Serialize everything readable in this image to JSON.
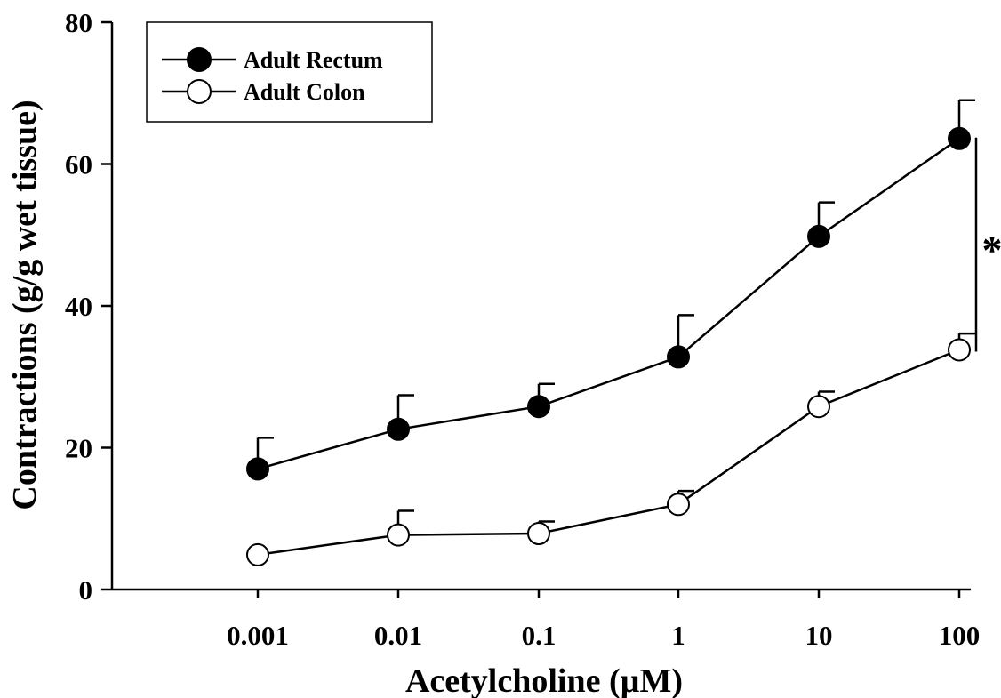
{
  "chart_data": {
    "type": "line",
    "x_scale": "log",
    "x": [
      "0.001",
      "0.01",
      "0.1",
      "1",
      "10",
      "100"
    ],
    "x_values": [
      0.001,
      0.01,
      0.1,
      1,
      10,
      100
    ],
    "xlabel": "Acetylcholine (µM)",
    "ylabel": "Contractions (g/g wet tissue)",
    "ylim": [
      0,
      80
    ],
    "yticks": [
      "0",
      "20",
      "40",
      "60",
      "80"
    ],
    "grid": false,
    "legend_position": "top-left",
    "series": [
      {
        "name": "Adult Rectum",
        "marker": "filled-circle",
        "color": "#000000",
        "values": [
          17.0,
          22.6,
          25.8,
          32.8,
          49.8,
          63.6
        ],
        "errors": [
          4.4,
          4.8,
          3.2,
          5.9,
          4.8,
          5.4
        ]
      },
      {
        "name": "Adult Colon",
        "marker": "open-circle",
        "color": "#000000",
        "values": [
          4.9,
          7.7,
          7.9,
          12.0,
          25.8,
          33.8
        ],
        "errors": [
          0,
          3.4,
          1.7,
          1.9,
          2.1,
          2.3
        ]
      }
    ],
    "annotations": [
      {
        "text": "*",
        "type": "significance-bracket",
        "between": [
          "Adult Rectum",
          "Adult Colon"
        ],
        "at_x": "100"
      }
    ]
  }
}
